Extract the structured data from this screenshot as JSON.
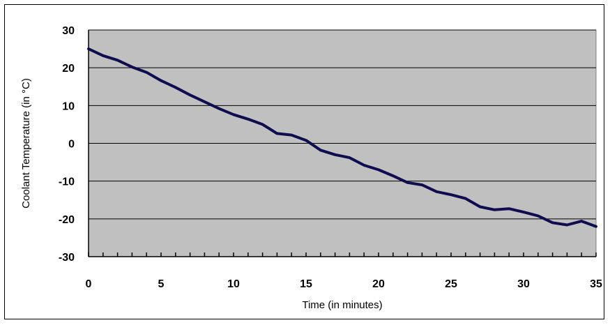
{
  "chart_data": {
    "type": "line",
    "title": "",
    "xlabel": "Time (in minutes)",
    "ylabel": "Coolant Temperature (in °C)",
    "xlim": [
      0,
      35
    ],
    "ylim": [
      -30,
      30
    ],
    "x_ticks": [
      0,
      5,
      10,
      15,
      20,
      25,
      30,
      35
    ],
    "y_ticks": [
      30,
      20,
      10,
      0,
      -10,
      -20,
      -30
    ],
    "x_tick_labels": [
      "0",
      "5",
      "10",
      "15",
      "20",
      "25",
      "30",
      "35"
    ],
    "y_tick_labels": [
      "30",
      "20",
      "10",
      "0",
      "-10",
      "-20",
      "-30"
    ],
    "grid": "horizontal",
    "plot_background": "#c0c0c0",
    "line_color": "#0d0d4f",
    "series": [
      {
        "x": [
          0,
          1,
          2,
          3,
          4,
          5,
          6,
          7,
          8,
          9,
          10,
          11,
          12,
          13,
          14,
          15,
          16,
          17,
          18,
          19,
          20,
          21,
          22,
          23,
          24,
          25,
          26,
          27,
          28,
          29,
          30,
          31,
          32,
          33,
          34,
          35
        ],
        "values": [
          25,
          23.2,
          22,
          20.2,
          18.8,
          16.6,
          14.8,
          12.8,
          11,
          9.2,
          7.6,
          6.4,
          5,
          2.6,
          2.2,
          0.8,
          -1.8,
          -3,
          -3.8,
          -5.8,
          -7,
          -8.6,
          -10.4,
          -11,
          -12.8,
          -13.6,
          -14.6,
          -16.8,
          -17.6,
          -17.3,
          -18.2,
          -19.2,
          -21,
          -21.6,
          -20.6,
          -22
        ]
      }
    ]
  }
}
